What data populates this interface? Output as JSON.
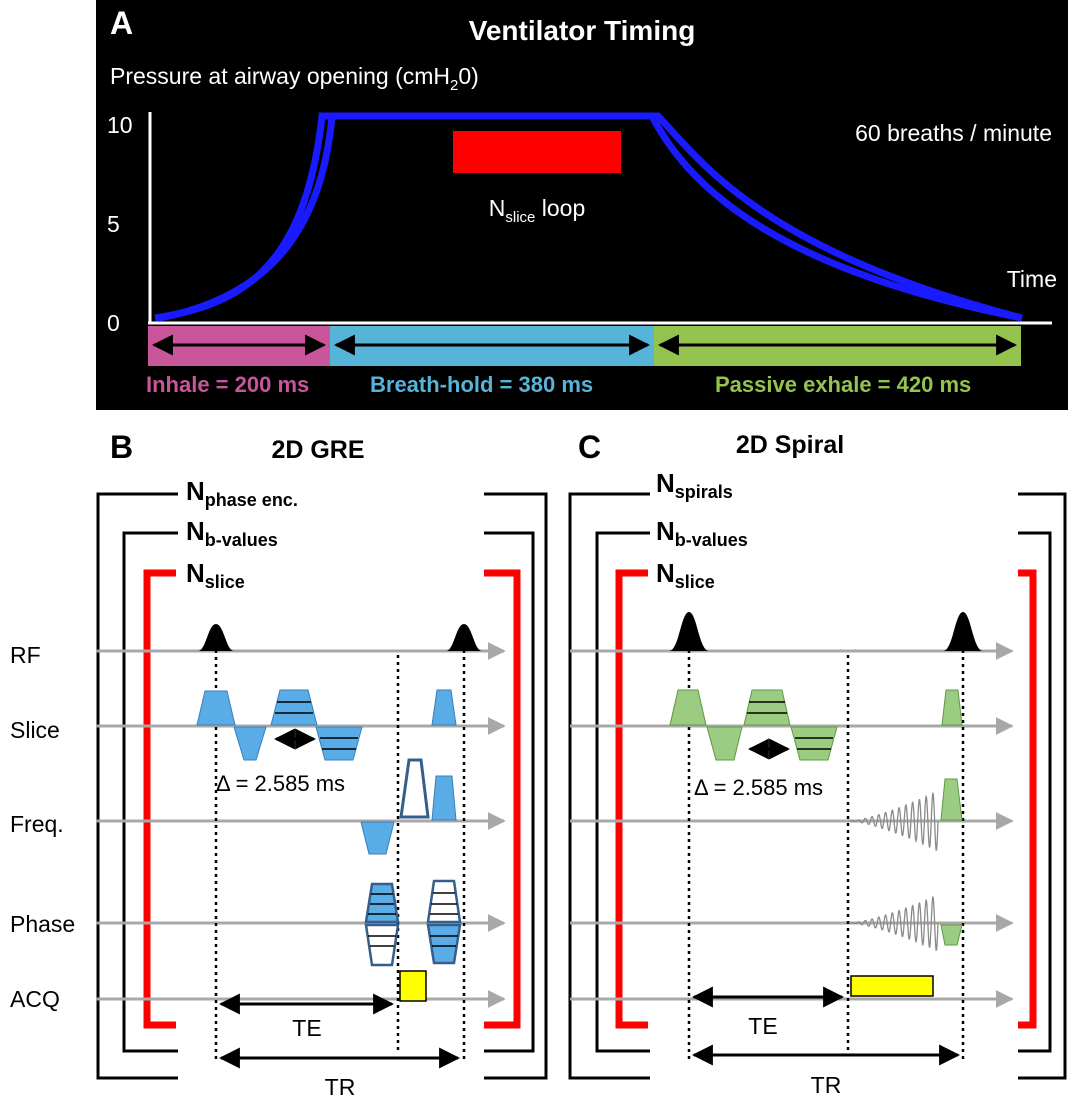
{
  "colors": {
    "panel_bg": "#000000",
    "pressure_curve": "#1a1aff",
    "nslice_bar": "#ff0000",
    "inhale": "#c9559a",
    "breath_hold": "#56b4d9",
    "exhale": "#94c34f",
    "gre_gradient": "#5aace6",
    "spiral_gradient": "#9ccc82",
    "acq_box": "#ffff00",
    "loop_bracket": "#ff0000",
    "axis_line": "#a0a0a0"
  },
  "panel_a": {
    "label": "A",
    "title": "Ventilator Timing",
    "ylabel_main": "Pressure at airway opening (cmH",
    "ylabel_sub": "2",
    "ylabel_end": "0)",
    "y_ticks": [
      "10",
      "5",
      "0"
    ],
    "rate": "60 breaths / minute",
    "time_label": "Time",
    "nslice_main": "N",
    "nslice_sub": "slice",
    "nslice_end": " loop",
    "phases": [
      {
        "label": "Inhale = 200 ms",
        "duration_ms": 200
      },
      {
        "label": "Breath-hold = 380 ms",
        "duration_ms": 380
      },
      {
        "label": "Passive exhale = 420 ms",
        "duration_ms": 420
      }
    ]
  },
  "panel_b": {
    "label": "B",
    "title": "2D GRE",
    "loops": [
      {
        "main": "N",
        "sub": "phase enc."
      },
      {
        "main": "N",
        "sub": "b-values"
      },
      {
        "main": "N",
        "sub": "slice"
      }
    ],
    "delta": "Δ = 2.585 ms",
    "te": "TE",
    "tr": "TR"
  },
  "panel_c": {
    "label": "C",
    "title": "2D Spiral",
    "loops": [
      {
        "main": "N",
        "sub": "spirals"
      },
      {
        "main": "N",
        "sub": "b-values"
      },
      {
        "main": "N",
        "sub": "slice"
      }
    ],
    "delta": "Δ = 2.585 ms",
    "te": "TE",
    "tr": "TR"
  },
  "rows": [
    "RF",
    "Slice",
    "Freq.",
    "Phase",
    "ACQ"
  ]
}
